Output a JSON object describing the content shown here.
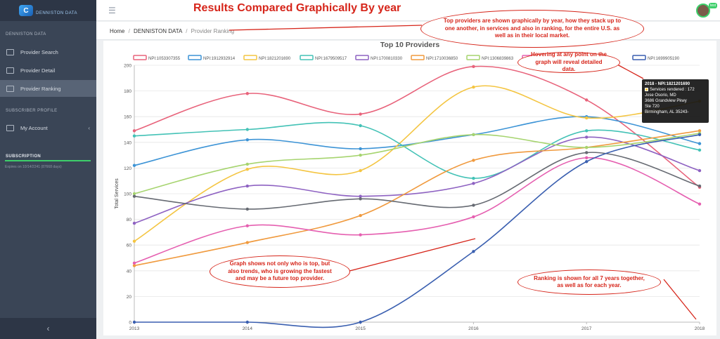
{
  "sidebar": {
    "logo_text": "DENNISTON DATA",
    "logo_mark": "C",
    "section_data": "DENNISTON DATA",
    "items": [
      {
        "label": "Provider Search",
        "icon": "list-icon"
      },
      {
        "label": "Provider Detail",
        "icon": "book-icon"
      },
      {
        "label": "Provider Ranking",
        "icon": "thumbs-up-icon"
      }
    ],
    "section_profile": "SUBSCRIBER PROFILE",
    "account_label": "My Account",
    "account_chevron": "‹",
    "section_subscription": "SUBSCRIPTION",
    "expires_text": "Expires on 10/14/2241 (87668 days)",
    "collapse_glyph": "‹"
  },
  "topbar": {
    "menu_glyph": "☰",
    "headline": "Results Compared Graphically By year",
    "user_badge": "test"
  },
  "breadcrumb": {
    "home": "Home",
    "data": "DENNISTON DATA",
    "current": "Provider Ranking",
    "separator": "/"
  },
  "callouts": {
    "top_right": "Top providers are shown graphically by year, how they stack up to one another, in services and also in ranking, for the entire U.S. as well as in their local market.",
    "hover": "Hovering at any point on the graph will reveal detailed data.",
    "trends": "Graph shows not only who is top, but also trends, who is growing the fastest and may be a future top provider.",
    "ranking": "Ranking is shown for all 7 years together, as well as for each year."
  },
  "tooltip": {
    "title": "2018 - NPI:1821201690",
    "metric": "Services rendered : 172",
    "lines": [
      "Jose Osorio, MD",
      "3686 Grandview Pkwy",
      "Ste 720",
      "Birmingham, AL 35243-"
    ]
  },
  "colors": {
    "annotation": "#d6251a",
    "sidebar_bg": "#3a4556",
    "active_item": "#586476",
    "subscription_bar": "#3dcf6a"
  },
  "chart_data": {
    "type": "line",
    "title": "Top 10 Providers",
    "xlabel": "",
    "ylabel": "Total Services",
    "x": [
      "2013",
      "2014",
      "2015",
      "2016",
      "2017",
      "2018"
    ],
    "ylim": [
      0,
      200
    ],
    "yticks": [
      0,
      20,
      40,
      60,
      80,
      100,
      120,
      140,
      160,
      180,
      200
    ],
    "legend_position": "top",
    "series": [
      {
        "name": "NPI:1053307355",
        "color": "#e8637b",
        "values": [
          149,
          178,
          162,
          199,
          173,
          105
        ]
      },
      {
        "name": "NPI:1912932914",
        "color": "#3d94d6",
        "values": [
          122,
          142,
          135,
          146,
          160,
          139
        ]
      },
      {
        "name": "NPI:1821201690",
        "color": "#f4c542",
        "values": [
          63,
          119,
          118,
          183,
          159,
          172
        ]
      },
      {
        "name": "NPI:1679509517",
        "color": "#43c2b6",
        "values": [
          145,
          150,
          153,
          112,
          149,
          134
        ]
      },
      {
        "name": "NPI:1700810330",
        "color": "#8e62c2",
        "values": [
          77,
          106,
          98,
          108,
          144,
          118
        ]
      },
      {
        "name": "NPI:1710036850",
        "color": "#f09a3e",
        "values": [
          44,
          62,
          83,
          126,
          136,
          149
        ]
      },
      {
        "name": "NPI:1306839863",
        "color": "#a6d46f",
        "values": [
          100,
          123,
          130,
          146,
          136,
          147
        ]
      },
      {
        "name": "",
        "color": "#e55fb0",
        "values": [
          46,
          75,
          68,
          82,
          128,
          92
        ]
      },
      {
        "name": "",
        "color": "#666a72",
        "values": [
          98,
          88,
          96,
          91,
          132,
          106
        ]
      },
      {
        "name": "NPI:1699905190",
        "color": "#3a5fb0",
        "values": [
          0,
          0,
          0,
          55,
          125,
          146
        ]
      }
    ],
    "legend_visible_suffix": "02"
  }
}
